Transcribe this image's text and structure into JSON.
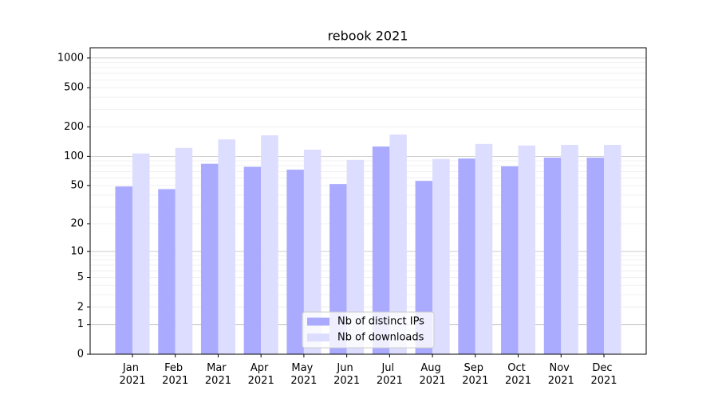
{
  "chart_data": {
    "type": "bar",
    "title": "rebook 2021",
    "yscale": "log1p",
    "categories": [
      "Jan 2021",
      "Feb 2021",
      "Mar 2021",
      "Apr 2021",
      "May 2021",
      "Jun 2021",
      "Jul 2021",
      "Aug 2021",
      "Sep 2021",
      "Oct 2021",
      "Nov 2021",
      "Dec 2021"
    ],
    "series": [
      {
        "name": "Nb of distinct IPs",
        "color": "#aaaaff",
        "values": [
          49,
          46,
          84,
          78,
          73,
          52,
          126,
          56,
          95,
          79,
          97,
          97
        ]
      },
      {
        "name": "Nb of downloads",
        "color": "#ddddff",
        "values": [
          107,
          122,
          149,
          164,
          117,
          92,
          167,
          94,
          134,
          129,
          131,
          131
        ]
      }
    ],
    "ylim": [
      0,
      1270
    ],
    "yticks": [
      0,
      1,
      2,
      5,
      10,
      20,
      50,
      100,
      200,
      500,
      1000
    ],
    "grid": true,
    "legend": "lower center"
  }
}
